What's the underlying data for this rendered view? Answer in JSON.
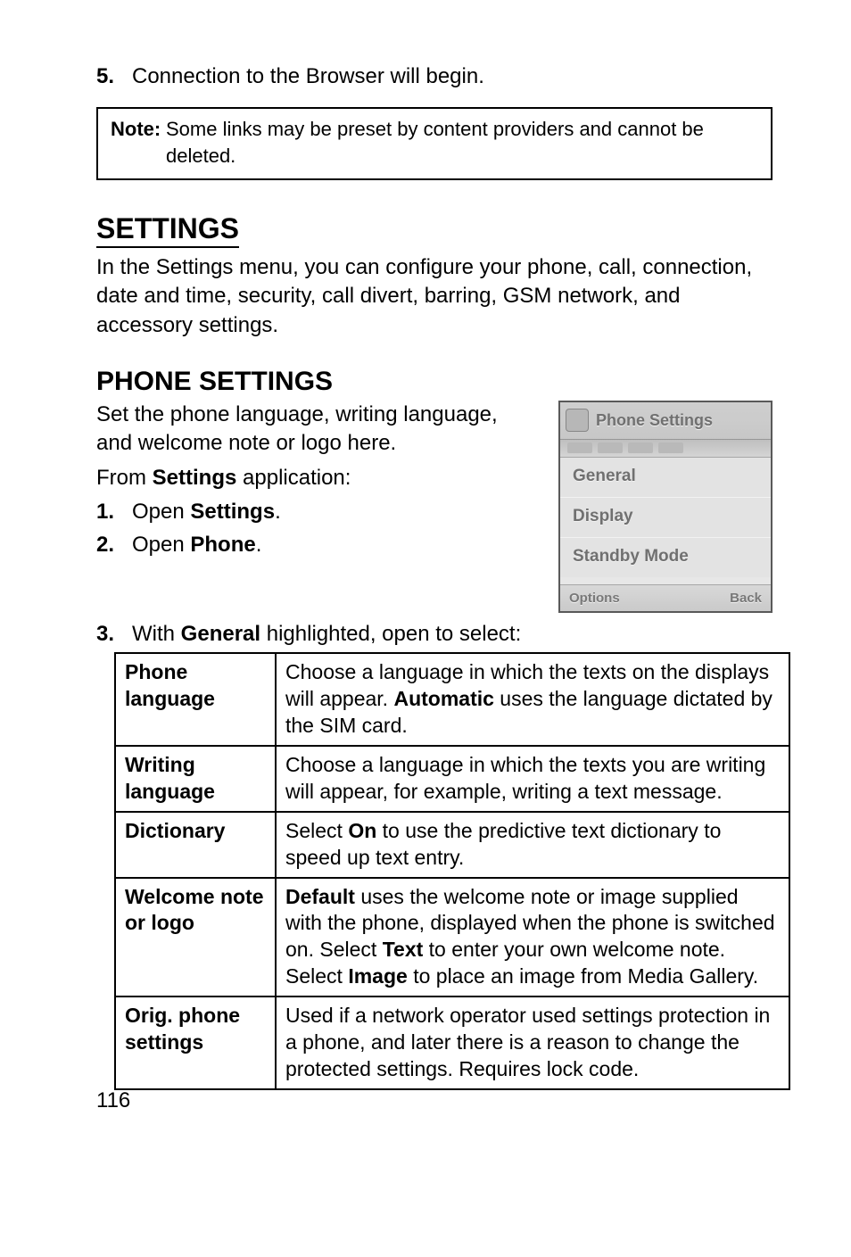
{
  "step5": {
    "num": "5.",
    "text": "Connection to the Browser will begin."
  },
  "note": {
    "label": "Note",
    "text": "Some links may be preset by content providers and cannot be deleted."
  },
  "settings": {
    "heading": "SETTINGS",
    "para": "In the Settings menu, you can configure your phone, call, connection, date and time, security, call divert, barring, GSM network, and accessory settings."
  },
  "phone_settings": {
    "heading": "PHONE SETTINGS",
    "para": "Set the phone language, writing language, and welcome note or logo here.",
    "from_line_pre": "From ",
    "from_line_b": "Settings",
    "from_line_post": " application:",
    "steps": [
      {
        "num": "1.",
        "pre": "Open ",
        "b": "Settings",
        "post": "."
      },
      {
        "num": "2.",
        "pre": "Open ",
        "b": "Phone",
        "post": "."
      }
    ],
    "step3": {
      "num": "3.",
      "pre": "With ",
      "b": "General",
      "post": " highlighted, open to select:"
    }
  },
  "screenshot": {
    "title": "Phone Settings",
    "items": [
      "General",
      "Display",
      "Standby Mode"
    ],
    "left": "Options",
    "right": "Back"
  },
  "table": {
    "rows": [
      {
        "key": "Phone language",
        "segs": [
          {
            "t": "Choose a language in which the texts on the displays will appear. "
          },
          {
            "t": "Automatic",
            "b": true
          },
          {
            "t": " uses the language dictated by the SIM card."
          }
        ]
      },
      {
        "key": "Writing language",
        "segs": [
          {
            "t": "Choose a language in which the texts you are writing will appear, for example, writing a text message."
          }
        ]
      },
      {
        "key": "Dictionary",
        "segs": [
          {
            "t": "Select "
          },
          {
            "t": "On",
            "b": true
          },
          {
            "t": " to use the predictive text dictionary to speed up text entry."
          }
        ]
      },
      {
        "key": "Welcome note or logo",
        "segs": [
          {
            "t": "Default",
            "b": true
          },
          {
            "t": " uses the welcome note or image supplied with the phone, displayed when the phone is switched on. Select "
          },
          {
            "t": "Text",
            "b": true
          },
          {
            "t": " to enter your own welcome note. Select "
          },
          {
            "t": "Image",
            "b": true
          },
          {
            "t": " to place an image from Media Gallery."
          }
        ]
      },
      {
        "key": "Orig. phone settings",
        "segs": [
          {
            "t": "Used if a network operator used settings protection in a phone, and later there is a reason to change the protected settings. Requires lock code."
          }
        ]
      }
    ]
  },
  "page_number": "116"
}
